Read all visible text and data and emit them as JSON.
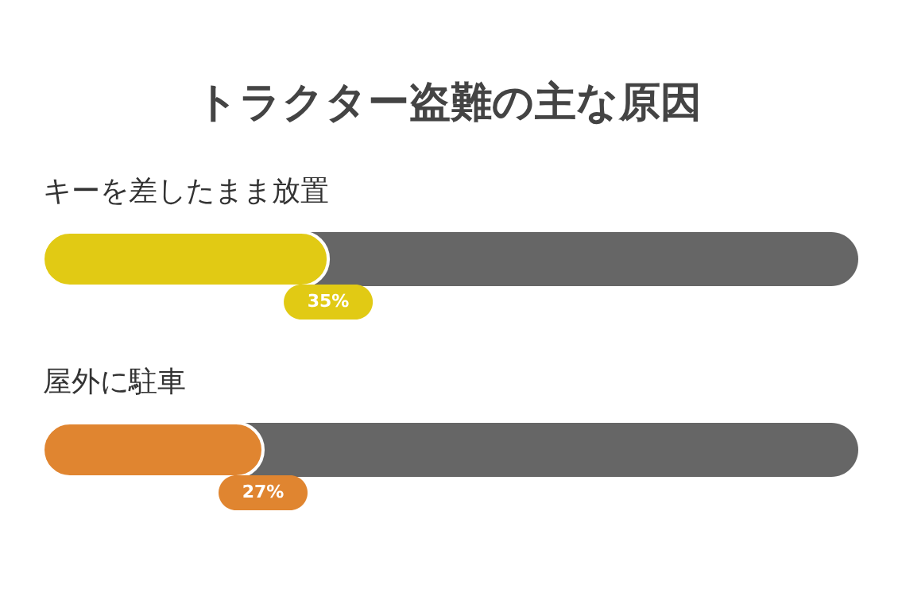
{
  "chart_data": {
    "type": "bar",
    "orientation": "horizontal",
    "title": "トラクター盗難の主な原因",
    "categories": [
      "キーを差したまま放置",
      "屋外に駐車"
    ],
    "xlim": [
      0,
      100
    ],
    "series": [
      {
        "colors": [
          "#e1ca14",
          "#e08530"
        ],
        "values": [
          35,
          27
        ],
        "value_labels": [
          "35%",
          "27%"
        ]
      }
    ]
  }
}
